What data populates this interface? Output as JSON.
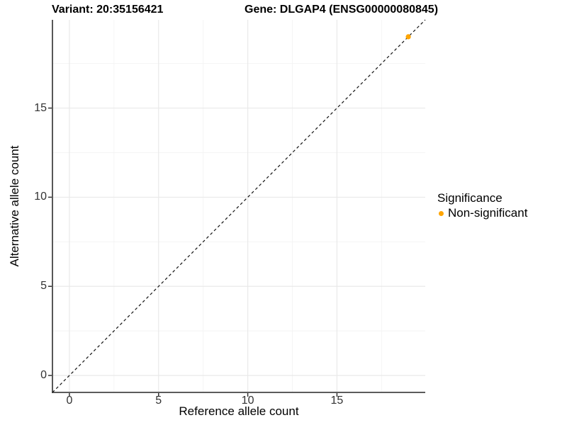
{
  "titles": {
    "variant": "Variant: 20:35156421",
    "gene": "Gene: DLGAP4 (ENSG00000080845)"
  },
  "legend": {
    "title": "Significance",
    "items": [
      {
        "label": "Non-significant",
        "color": "#FFA500"
      }
    ]
  },
  "chart_data": {
    "type": "scatter",
    "title": "Variant: 20:35156421   Gene: DLGAP4 (ENSG00000080845)",
    "xlabel": "Reference allele count",
    "ylabel": "Alternative allele count",
    "xlim": [
      -0.95,
      19.95
    ],
    "ylim": [
      -0.95,
      19.95
    ],
    "xticks": [
      0,
      5,
      10,
      15
    ],
    "yticks": [
      0,
      5,
      10,
      15
    ],
    "minor_ticks_x": [
      2.5,
      7.5,
      12.5,
      17.5
    ],
    "minor_ticks_y": [
      2.5,
      7.5,
      12.5,
      17.5
    ],
    "grid": true,
    "legend_position": "right",
    "series": [
      {
        "name": "Non-significant",
        "color": "#FFA500",
        "points": [
          [
            19,
            19
          ]
        ]
      }
    ],
    "reference_line": {
      "type": "identity",
      "slope": 1,
      "intercept": 0,
      "style": "dashed",
      "color": "#111111"
    },
    "colors": {
      "grid_major": "#e9e9e9",
      "grid_minor": "#f4f4f4",
      "axis_line": "#454545",
      "tick_mark": "#333333"
    }
  }
}
